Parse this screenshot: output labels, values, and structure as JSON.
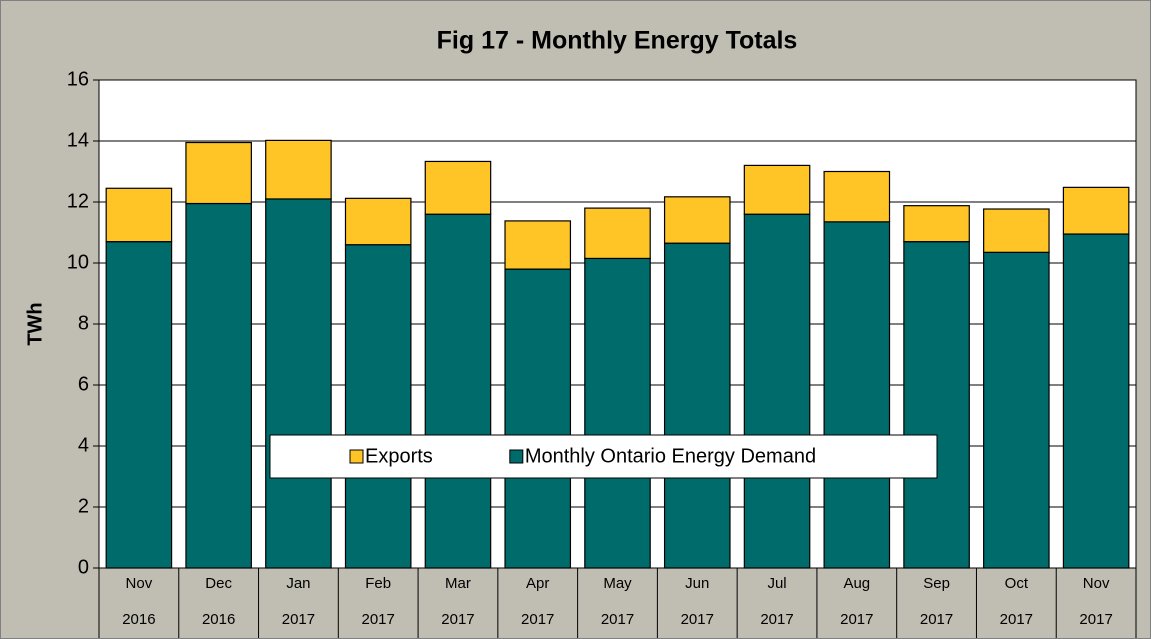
{
  "chart_data": {
    "type": "stacked_bar",
    "title": "Fig  17 - Monthly Energy Totals",
    "y_label": "TWh",
    "categories": [
      [
        "Nov",
        "2016"
      ],
      [
        "Dec",
        "2016"
      ],
      [
        "Jan",
        "2017"
      ],
      [
        "Feb",
        "2017"
      ],
      [
        "Mar",
        "2017"
      ],
      [
        "Apr",
        "2017"
      ],
      [
        "May",
        "2017"
      ],
      [
        "Jun",
        "2017"
      ],
      [
        "Jul",
        "2017"
      ],
      [
        "Aug",
        "2017"
      ],
      [
        "Sep",
        "2017"
      ],
      [
        "Oct",
        "2017"
      ],
      [
        "Nov",
        "2017"
      ]
    ],
    "series": [
      {
        "name": "Monthly Ontario Energy Demand",
        "color": "#006b6b",
        "values": [
          10.7,
          11.95,
          12.1,
          10.6,
          11.6,
          9.8,
          10.15,
          10.65,
          11.6,
          11.35,
          10.7,
          10.35,
          10.95
        ]
      },
      {
        "name": "Exports",
        "color": "#ffc425",
        "values": [
          1.75,
          2.0,
          1.92,
          1.52,
          1.73,
          1.58,
          1.65,
          1.52,
          1.6,
          1.65,
          1.18,
          1.42,
          1.53
        ]
      }
    ],
    "ylim": [
      0,
      16
    ],
    "yticks": [
      0,
      2,
      4,
      6,
      8,
      10,
      12,
      14,
      16
    ],
    "grid": true
  }
}
